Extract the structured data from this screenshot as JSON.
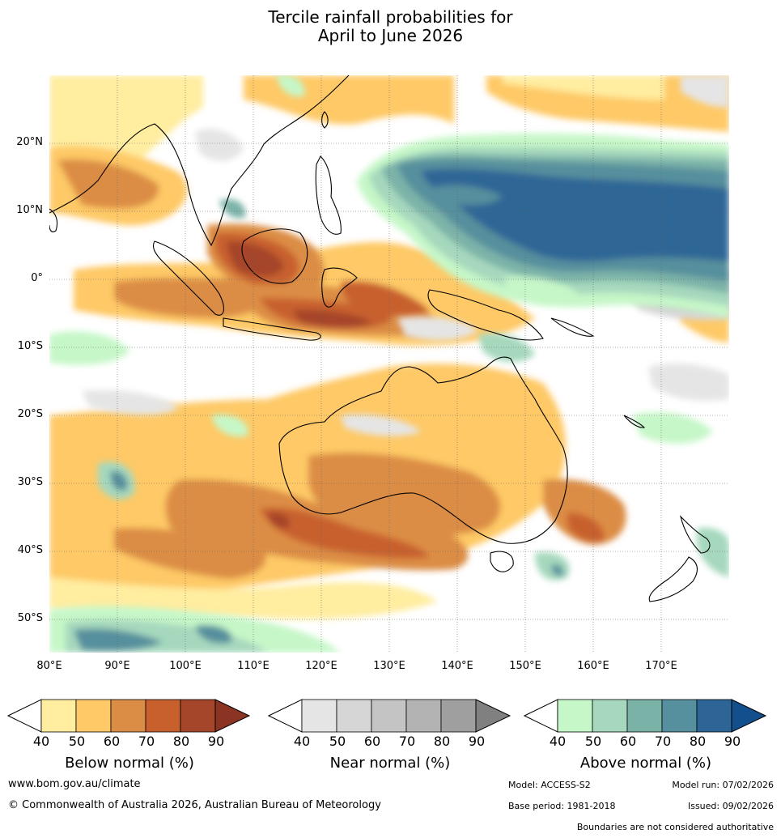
{
  "title_line1": "Tercile rainfall probabilities for",
  "title_line2": "April to June 2026",
  "map": {
    "lat_labels": [
      "20°N",
      "10°N",
      "0°",
      "10°S",
      "20°S",
      "30°S",
      "40°S",
      "50°S"
    ],
    "lon_labels": [
      "80°E",
      "90°E",
      "100°E",
      "110°E",
      "120°E",
      "130°E",
      "140°E",
      "150°E",
      "160°E",
      "170°E"
    ]
  },
  "legends": [
    {
      "title": "Below normal (%)",
      "ticks": [
        "40",
        "50",
        "60",
        "70",
        "80",
        "90"
      ],
      "colors": [
        "#ffffff",
        "#ffeda0",
        "#fec966",
        "#dc8d45",
        "#c8602e",
        "#a5452a",
        "#8c3424"
      ]
    },
    {
      "title": "Near normal (%)",
      "ticks": [
        "40",
        "50",
        "60",
        "70",
        "80",
        "90"
      ],
      "colors": [
        "#ffffff",
        "#e5e5e5",
        "#d6d6d6",
        "#c4c4c4",
        "#b3b3b3",
        "#9f9f9f",
        "#808080"
      ]
    },
    {
      "title": "Above normal (%)",
      "ticks": [
        "40",
        "50",
        "60",
        "70",
        "80",
        "90"
      ],
      "colors": [
        "#ffffff",
        "#c6f7c8",
        "#a6d8bd",
        "#7bb2a8",
        "#568f9d",
        "#2d6696",
        "#124f8c"
      ]
    }
  ],
  "footer": {
    "website": "www.bom.gov.au/climate",
    "copyright": "© Commonwealth of Australia 2026, Australian Bureau of Meteorology",
    "model": "Model: ACCESS-S2",
    "model_run": "Model run: 07/02/2026",
    "base_period": "Base period: 1981-2018",
    "issued": "Issued: 09/02/2026",
    "disclaimer": "Boundaries are not considered authoritative"
  }
}
